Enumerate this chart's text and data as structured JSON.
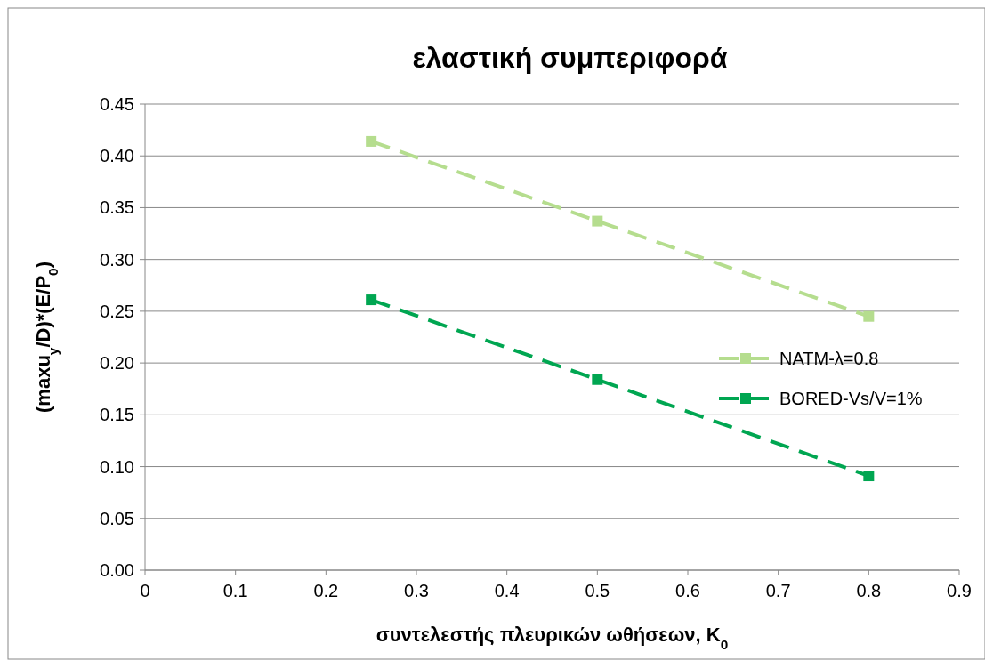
{
  "chart_data": {
    "type": "line",
    "title": "ελαστική συμπεριφορά",
    "xlabel": "συντελεστής πλευρικών ωθήσεων, K$_{0}$",
    "ylabel": "(maxu$_{y}$/D)*(E/P$_{0}$)",
    "xlim": [
      0,
      0.9
    ],
    "xticks": [
      {
        "value": 0,
        "label": "0"
      },
      0.1,
      0.2,
      0.3,
      0.4,
      0.5,
      0.6,
      0.7,
      0.8,
      0.9
    ],
    "ylim": [
      0,
      0.45
    ],
    "yticks": [
      {
        "value": 0,
        "label": "0.00"
      },
      {
        "value": 0.05,
        "label": "0.05"
      },
      {
        "value": 0.1,
        "label": "0.10"
      },
      {
        "value": 0.15,
        "label": "0.15"
      },
      {
        "value": 0.2,
        "label": "0.20"
      },
      {
        "value": 0.25,
        "label": "0.25"
      },
      {
        "value": 0.3,
        "label": "0.30"
      },
      {
        "value": 0.35,
        "label": "0.35"
      },
      {
        "value": 0.4,
        "label": "0.40"
      },
      {
        "value": 0.45,
        "label": "0.45"
      }
    ],
    "x": [
      0.25,
      0.5,
      0.8
    ],
    "series": [
      {
        "name": "NATM-λ=0.8",
        "color": "#b5dd8e",
        "values": [
          0.414,
          0.337,
          0.245
        ]
      },
      {
        "name": "BORED-Vs/V=1%",
        "color": "#00a651",
        "values": [
          0.261,
          0.184,
          0.091
        ]
      }
    ],
    "grid": "y",
    "legend": "right",
    "marker": "square",
    "line_style": "dashed"
  }
}
